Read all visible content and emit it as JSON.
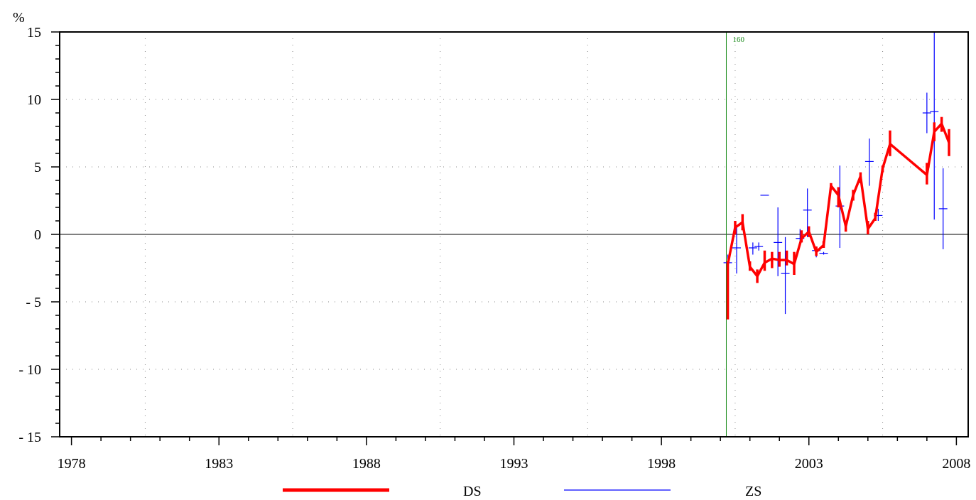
{
  "chart_data": {
    "type": "line",
    "y_unit_label": "%",
    "xlim": [
      1977.6,
      2008.4
    ],
    "ylim": [
      -15,
      15
    ],
    "x_ticks": [
      1978,
      1983,
      1988,
      1993,
      1998,
      2003,
      2008
    ],
    "x_tick_labels": [
      "1978",
      "1983",
      "1988",
      "1993",
      "1998",
      "2003",
      "2008"
    ],
    "y_ticks": [
      15,
      10,
      5,
      0,
      -5,
      -10,
      -15
    ],
    "y_tick_labels": [
      "15",
      "10",
      "5",
      "0",
      "- 5",
      "- 10",
      "- 15"
    ],
    "grid": "dotted",
    "zero_line": true,
    "legend_position": "bottom",
    "marker": {
      "x": 2000.2,
      "label": "160",
      "color": "#1a8a1a"
    },
    "series": [
      {
        "name": "DS",
        "color": "#ff0000",
        "style": "thick line with range bars",
        "points": [
          {
            "x": 2000.25,
            "y": -2.2,
            "lo": -6.3,
            "hi": -2.0
          },
          {
            "x": 2000.5,
            "y": 0.5,
            "lo": 0.0,
            "hi": 1.0
          },
          {
            "x": 2000.75,
            "y": 0.9,
            "lo": 0.3,
            "hi": 1.5
          },
          {
            "x": 2001.0,
            "y": -2.4,
            "lo": -2.7,
            "hi": -2.0
          },
          {
            "x": 2001.25,
            "y": -3.1,
            "lo": -3.6,
            "hi": -2.6
          },
          {
            "x": 2001.5,
            "y": -2.1,
            "lo": -2.7,
            "hi": -1.2
          },
          {
            "x": 2001.75,
            "y": -1.8,
            "lo": -2.5,
            "hi": -1.3
          },
          {
            "x": 2002.0,
            "y": -1.9,
            "lo": -2.4,
            "hi": -1.3
          },
          {
            "x": 2002.25,
            "y": -1.9,
            "lo": -2.3,
            "hi": -1.2
          },
          {
            "x": 2002.5,
            "y": -2.2,
            "lo": -3.0,
            "hi": -1.3
          },
          {
            "x": 2002.75,
            "y": -0.3,
            "lo": -0.6,
            "hi": 0.3
          },
          {
            "x": 2003.0,
            "y": 0.2,
            "lo": -0.2,
            "hi": 0.6
          },
          {
            "x": 2003.25,
            "y": -1.3,
            "lo": -1.6,
            "hi": -0.9
          },
          {
            "x": 2003.5,
            "y": -0.8,
            "lo": -1.0,
            "hi": -0.5
          },
          {
            "x": 2003.75,
            "y": 3.6,
            "lo": 3.3,
            "hi": 3.8
          },
          {
            "x": 2004.0,
            "y": 2.9,
            "lo": 2.0,
            "hi": 3.5
          },
          {
            "x": 2004.25,
            "y": 0.6,
            "lo": 0.2,
            "hi": 1.0
          },
          {
            "x": 2004.5,
            "y": 2.9,
            "lo": 2.5,
            "hi": 3.3
          },
          {
            "x": 2004.75,
            "y": 4.3,
            "lo": 3.8,
            "hi": 4.6
          },
          {
            "x": 2005.0,
            "y": 0.4,
            "lo": 0.0,
            "hi": 1.0
          },
          {
            "x": 2005.25,
            "y": 1.2,
            "lo": 1.0,
            "hi": 1.6
          },
          {
            "x": 2005.5,
            "y": 4.9,
            "lo": 4.6,
            "hi": 5.1
          },
          {
            "x": 2005.75,
            "y": 6.7,
            "lo": 5.8,
            "hi": 7.7
          },
          {
            "x": 2007.0,
            "y": 4.4,
            "lo": 3.7,
            "hi": 5.3
          },
          {
            "x": 2007.25,
            "y": 7.6,
            "lo": 6.9,
            "hi": 8.3
          },
          {
            "x": 2007.5,
            "y": 8.2,
            "lo": 7.6,
            "hi": 8.7
          },
          {
            "x": 2007.75,
            "y": 6.8,
            "lo": 5.8,
            "hi": 7.8
          }
        ]
      },
      {
        "name": "ZS",
        "color": "#0000ff",
        "style": "range bars with horizontal tick",
        "points": [
          {
            "x": 2000.25,
            "y": -2.1,
            "lo": -6.0,
            "hi": -1.5
          },
          {
            "x": 2000.55,
            "y": -1.0,
            "lo": -2.9,
            "hi": 0.6
          },
          {
            "x": 2001.1,
            "y": -1.0,
            "lo": -1.5,
            "hi": -0.6
          },
          {
            "x": 2001.3,
            "y": -0.9,
            "lo": -1.2,
            "hi": -0.6
          },
          {
            "x": 2001.5,
            "y": 2.9,
            "lo": 2.9,
            "hi": 2.9
          },
          {
            "x": 2001.95,
            "y": -0.6,
            "lo": -3.1,
            "hi": 2.0
          },
          {
            "x": 2002.2,
            "y": -2.9,
            "lo": -5.9,
            "hi": -0.2
          },
          {
            "x": 2002.7,
            "y": -0.3,
            "lo": -0.5,
            "hi": 0.4
          },
          {
            "x": 2002.95,
            "y": 1.8,
            "lo": -0.2,
            "hi": 3.4
          },
          {
            "x": 2003.25,
            "y": -1.2,
            "lo": -1.7,
            "hi": -0.9
          },
          {
            "x": 2003.5,
            "y": -1.4,
            "lo": -1.5,
            "hi": -1.3
          },
          {
            "x": 2004.05,
            "y": 2.1,
            "lo": -1.0,
            "hi": 5.1
          },
          {
            "x": 2005.05,
            "y": 5.4,
            "lo": 3.6,
            "hi": 7.1
          },
          {
            "x": 2005.35,
            "y": 1.4,
            "lo": 1.0,
            "hi": 1.9
          },
          {
            "x": 2007.0,
            "y": 9.0,
            "lo": 7.5,
            "hi": 10.5
          },
          {
            "x": 2007.25,
            "y": 9.1,
            "lo": 1.1,
            "hi": 15.0
          },
          {
            "x": 2007.55,
            "y": 1.9,
            "lo": -1.1,
            "hi": 4.9
          }
        ]
      }
    ]
  }
}
